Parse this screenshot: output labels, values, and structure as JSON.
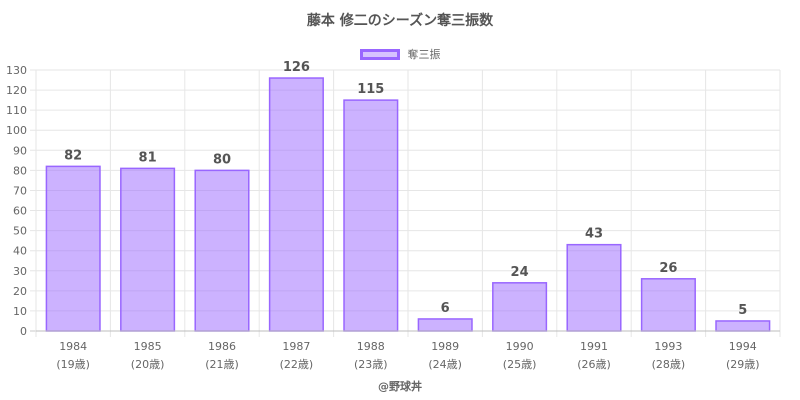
{
  "chart_data": {
    "type": "bar",
    "title": "藤本 修二のシーズン奪三振数",
    "categories": [
      "1984",
      "1985",
      "1986",
      "1987",
      "1988",
      "1989",
      "1990",
      "1991",
      "1993",
      "1994"
    ],
    "sublabels": [
      "(19歳)",
      "(20歳)",
      "(21歳)",
      "(22歳)",
      "(23歳)",
      "(24歳)",
      "(25歳)",
      "(26歳)",
      "(28歳)",
      "(29歳)"
    ],
    "series": [
      {
        "name": "奪三振",
        "values": [
          82,
          81,
          80,
          126,
          115,
          6,
          24,
          43,
          26,
          5
        ]
      }
    ],
    "ylim": [
      0,
      130
    ],
    "yticks": [
      0,
      10,
      20,
      30,
      40,
      50,
      60,
      70,
      80,
      90,
      100,
      110,
      120,
      130
    ],
    "grid": true,
    "legend_position": "top",
    "bar_fill": "rgba(153,102,255,0.5)",
    "bar_border": "#9966ff"
  },
  "credit": "@野球丼"
}
